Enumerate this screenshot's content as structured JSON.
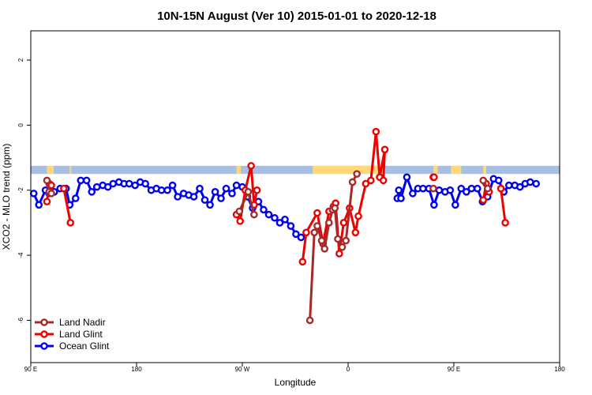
{
  "chart_data": {
    "type": "line",
    "title": "10N-15N August (Ver 10)   2015-01-01 to 2020-12-18",
    "xlabel": "Longitude",
    "ylabel": "XCO2 - MLO trend (ppm)",
    "xlim": [
      90,
      450
    ],
    "ylim": [
      -7.3,
      2.9
    ],
    "xticks": [
      {
        "value": 90,
        "label": "90 E"
      },
      {
        "value": 162,
        "label": "180"
      },
      {
        "value": 234,
        "label": "90 W"
      },
      {
        "value": 306,
        "label": "0"
      },
      {
        "value": 378,
        "label": "90 E"
      },
      {
        "value": 450,
        "label": "180"
      }
    ],
    "yticks": [
      {
        "value": 2,
        "label": "2"
      },
      {
        "value": 0,
        "label": "0"
      },
      {
        "value": -2,
        "label": "-2"
      },
      {
        "value": -4,
        "label": "-4"
      },
      {
        "value": -6,
        "label": "-6"
      }
    ],
    "land_band": {
      "y_top": -1.25,
      "y_bottom": -1.5,
      "land_color": "#FFD978",
      "ocean_color": "#A7BFE3"
    },
    "land_spans": [
      [
        101,
        105.5
      ],
      [
        116.5,
        117.5
      ],
      [
        230,
        233
      ],
      [
        282,
        331
      ],
      [
        364,
        367
      ],
      [
        376,
        383
      ],
      [
        398,
        400
      ]
    ],
    "legend": {
      "position": "bottom-left",
      "entries": [
        "Land Nadir",
        "Land Glint",
        "Ocean Glint"
      ]
    },
    "series": [
      {
        "name": "Ocean Glint",
        "color": "#0000EE",
        "points": [
          [
            92,
            -2.1
          ],
          [
            95.5,
            -2.45
          ],
          [
            100,
            -2.0
          ],
          [
            102.5,
            -2.1
          ],
          [
            106,
            -2.05
          ],
          [
            110,
            -1.95
          ],
          [
            114,
            -1.95
          ],
          [
            116.5,
            -2.45
          ],
          [
            120.5,
            -2.25
          ],
          [
            124,
            -1.7
          ],
          [
            128,
            -1.7
          ],
          [
            131.5,
            -2.05
          ],
          [
            135,
            -1.9
          ],
          [
            139,
            -1.85
          ],
          [
            142.5,
            -1.9
          ],
          [
            146,
            -1.8
          ],
          [
            150,
            -1.75
          ],
          [
            153.5,
            -1.8
          ],
          [
            157,
            -1.8
          ],
          [
            161,
            -1.85
          ],
          [
            164.5,
            -1.75
          ],
          [
            168,
            -1.8
          ],
          [
            172,
            -2.0
          ],
          [
            175.5,
            -1.95
          ],
          [
            179,
            -2.0
          ],
          [
            183,
            -2.0
          ],
          [
            186.5,
            -1.85
          ],
          [
            190,
            -2.2
          ],
          [
            194,
            -2.1
          ],
          [
            197.5,
            -2.15
          ],
          [
            201,
            -2.2
          ],
          [
            205,
            -1.95
          ],
          [
            208.5,
            -2.3
          ],
          [
            212,
            -2.45
          ],
          [
            215.5,
            -2.05
          ],
          [
            219.5,
            -2.25
          ],
          [
            223,
            -1.95
          ],
          [
            227,
            -2.1
          ],
          [
            230,
            -1.85
          ],
          [
            234,
            -1.9
          ],
          [
            237.5,
            -2.2
          ],
          [
            241,
            -2.55
          ],
          [
            245,
            -2.35
          ],
          [
            248.5,
            -2.6
          ],
          [
            252,
            -2.75
          ],
          [
            256,
            -2.85
          ],
          [
            259.5,
            -3.0
          ],
          [
            263,
            -2.9
          ],
          [
            267,
            -3.1
          ],
          [
            270.5,
            -3.35
          ],
          [
            274,
            -3.45
          ]
        ],
        "extra_segments": [
          [
            [
              339.5,
              -2.25
            ],
            [
              340.5,
              -2.0
            ],
            [
              342,
              -2.25
            ],
            [
              346,
              -1.6
            ],
            [
              350,
              -2.1
            ],
            [
              353.5,
              -1.95
            ],
            [
              357,
              -1.95
            ],
            [
              361,
              -1.95
            ],
            [
              364.5,
              -2.45
            ],
            [
              368,
              -2.0
            ],
            [
              372,
              -2.05
            ],
            [
              375.5,
              -2.0
            ],
            [
              379,
              -2.45
            ],
            [
              383,
              -1.95
            ],
            [
              386.5,
              -2.05
            ],
            [
              390,
              -1.95
            ],
            [
              394,
              -1.95
            ],
            [
              397.5,
              -2.35
            ],
            [
              401,
              -2.2
            ],
            [
              405,
              -1.65
            ],
            [
              408.5,
              -1.7
            ],
            [
              412,
              -2.05
            ],
            [
              415.5,
              -1.85
            ],
            [
              419.5,
              -1.85
            ],
            [
              423,
              -1.9
            ],
            [
              426.5,
              -1.8
            ],
            [
              430,
              -1.75
            ],
            [
              434,
              -1.8
            ]
          ]
        ]
      },
      {
        "name": "Land Glint",
        "color": "#EE0000",
        "segments": [
          [
            [
              101,
              -2.35
            ],
            [
              102.5,
              -1.8
            ],
            [
              104,
              -1.85
            ]
          ],
          [
            [
              117,
              -3.0
            ],
            [
              112.5,
              -1.95
            ]
          ],
          [
            [
              230,
              -2.75
            ],
            [
              232.5,
              -2.95
            ],
            [
              236,
              -2.0
            ],
            [
              240,
              -1.25
            ],
            [
              242,
              -2.45
            ],
            [
              244,
              -2.0
            ]
          ],
          [
            [
              275,
              -4.2
            ],
            [
              277.5,
              -3.3
            ],
            [
              285,
              -2.7
            ],
            [
              289,
              -3.65
            ],
            [
              293,
              -2.65
            ],
            [
              296,
              -2.5
            ],
            [
              297.5,
              -2.4
            ],
            [
              300,
              -3.95
            ],
            [
              303,
              -3.0
            ],
            [
              307,
              -2.55
            ],
            [
              311,
              -3.3
            ],
            [
              313,
              -2.8
            ],
            [
              318,
              -1.8
            ],
            [
              321.5,
              -1.7
            ],
            [
              325,
              -0.2
            ],
            [
              327.5,
              -1.6
            ],
            [
              331,
              -0.75
            ],
            [
              330,
              -1.7
            ]
          ],
          [
            [
              364,
              -1.6
            ],
            [
              364.5,
              -1.6
            ]
          ],
          [
            [
              398,
              -2.3
            ],
            [
              400,
              -1.8
            ],
            [
              402,
              -2.05
            ]
          ],
          [
            [
              410,
              -1.95
            ],
            [
              413,
              -3.0
            ]
          ]
        ]
      },
      {
        "name": "Land Nadir",
        "color": "#A52A2A",
        "segments": [
          [
            [
              101,
              -1.7
            ],
            [
              102.5,
              -2.05
            ],
            [
              104,
              -2.1
            ]
          ],
          [
            [
              232,
              -2.65
            ],
            [
              238,
              -2.05
            ],
            [
              242,
              -2.75
            ]
          ],
          [
            [
              280,
              -6.0
            ],
            [
              283,
              -3.3
            ],
            [
              285,
              -3.1
            ],
            [
              288,
              -3.55
            ],
            [
              290,
              -3.8
            ],
            [
              293,
              -3.0
            ],
            [
              295.5,
              -2.6
            ],
            [
              297,
              -2.55
            ],
            [
              299,
              -3.5
            ],
            [
              302,
              -3.75
            ],
            [
              304.5,
              -3.55
            ],
            [
              309,
              -1.75
            ],
            [
              312,
              -1.5
            ]
          ],
          [
            [
              364,
              -1.95
            ]
          ],
          [
            [
              398,
              -1.7
            ],
            [
              401,
              -1.95
            ]
          ]
        ]
      }
    ]
  }
}
